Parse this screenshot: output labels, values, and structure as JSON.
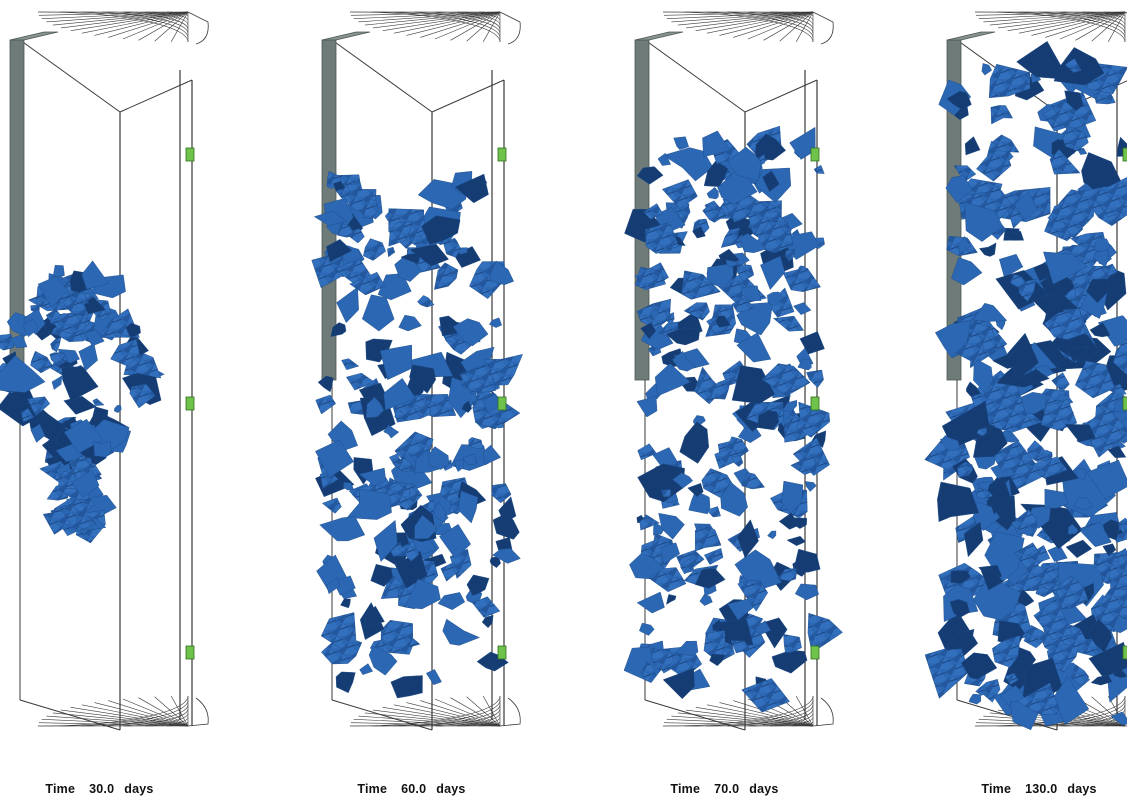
{
  "colors": {
    "background": "#ffffff",
    "plume": "#2c67b3",
    "plume_shadow": "#163d73",
    "wireframe": "#3a3a3a",
    "well_casing": "#6e7b78",
    "sensor": "#6fc24a"
  },
  "panels": [
    {
      "label_word": "Time",
      "value": "30.0",
      "unit": "days",
      "plume_extent": "lower-middle",
      "plume_fill": 0.3
    },
    {
      "label_word": "Time",
      "value": "60.0",
      "unit": "days",
      "plume_extent": "upper-to-lower",
      "plume_fill": 0.6
    },
    {
      "label_word": "Time",
      "value": "70.0",
      "unit": "days",
      "plume_extent": "upper-to-lower",
      "plume_fill": 0.68
    },
    {
      "label_word": "Time",
      "value": "130.0",
      "unit": "days",
      "plume_extent": "full-column",
      "plume_fill": 0.95
    }
  ]
}
